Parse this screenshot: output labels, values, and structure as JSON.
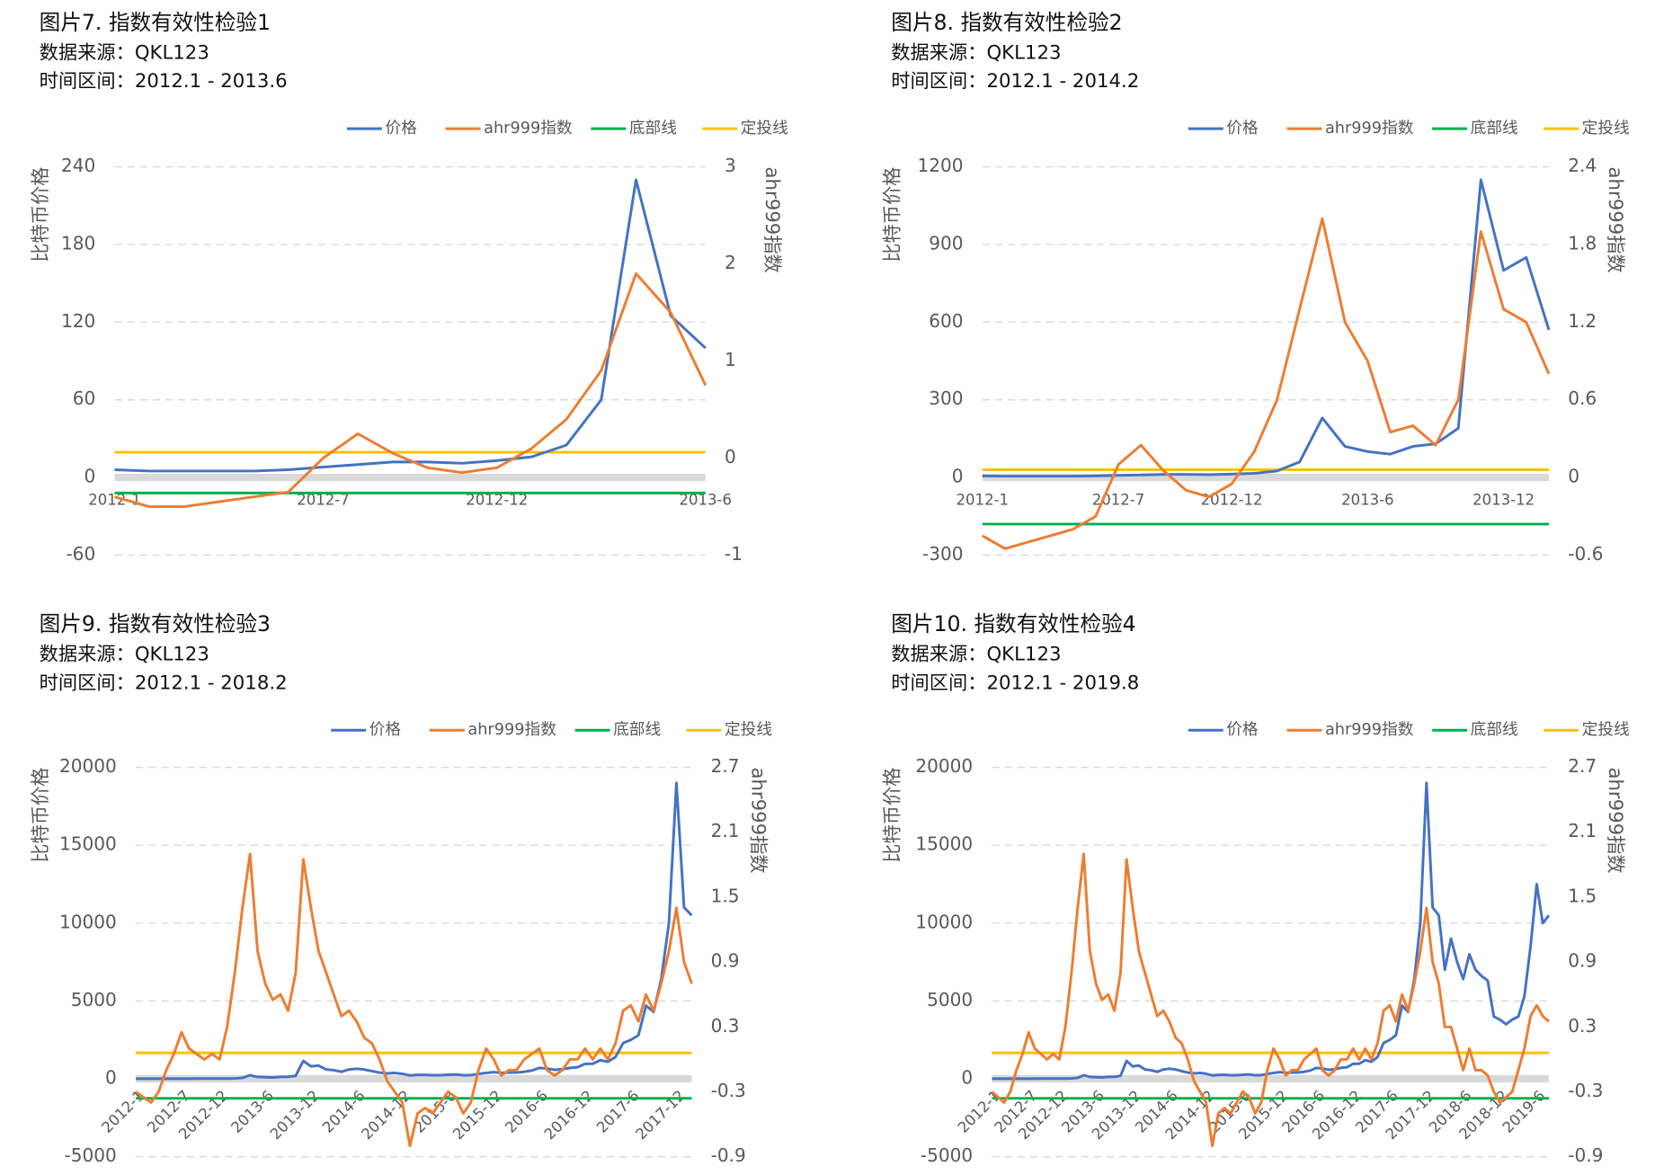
{
  "chart_data": [
    {
      "type": "line",
      "title": "图片7. 指数有效性检验1",
      "source": "数据来源：QKL123",
      "period": "时间区间：2012.1 - 2013.6",
      "y_label": "比特币价格",
      "y2_label": "ahr999指数",
      "categories": [
        "2012-1",
        null,
        null,
        null,
        null,
        null,
        "2012-7",
        null,
        null,
        null,
        null,
        "2012-12",
        null,
        null,
        null,
        null,
        null,
        "2013-6"
      ],
      "ylim": [
        -60,
        240
      ],
      "yticks": [
        -60,
        0,
        60,
        120,
        180,
        240
      ],
      "y2lim": [
        -1,
        3
      ],
      "y2ticks": [
        -1,
        0,
        1,
        2,
        3
      ],
      "grid": true,
      "series": [
        {
          "name": "价格",
          "color": "#4472c4",
          "values": [
            6,
            5,
            5,
            5,
            5,
            6,
            8,
            10,
            12,
            12,
            11,
            13,
            16,
            25,
            60,
            230,
            125,
            100
          ]
        },
        {
          "name": "ahr999指数",
          "color": "#ed7d31",
          "axis": "y2",
          "values": [
            -0.4,
            -0.5,
            -0.5,
            -0.45,
            -0.4,
            -0.35,
            0,
            0.25,
            0.05,
            -0.1,
            -0.15,
            -0.1,
            0.1,
            0.4,
            0.9,
            1.9,
            1.5,
            0.75
          ]
        }
      ],
      "hlines": [
        {
          "name": "底部线",
          "color": "#00b050",
          "axis": "y2",
          "value": -0.36
        },
        {
          "name": "定投线",
          "color": "#ffc000",
          "axis": "y2",
          "value": 0.06
        }
      ]
    },
    {
      "type": "line",
      "title": "图片8. 指数有效性检验2",
      "source": "数据来源：QKL123",
      "period": "时间区间：2012.1 - 2014.2",
      "y_label": "比特币价格",
      "y2_label": "ahr999指数",
      "categories": [
        "2012-1",
        null,
        null,
        null,
        null,
        null,
        "2012-7",
        null,
        null,
        null,
        null,
        "2012-12",
        null,
        null,
        null,
        null,
        null,
        "2013-6",
        null,
        null,
        null,
        null,
        null,
        "2013-12",
        null,
        null
      ],
      "ylim": [
        -300,
        1200
      ],
      "yticks": [
        -300,
        0,
        300,
        600,
        900,
        1200
      ],
      "y2lim": [
        -0.6,
        2.4
      ],
      "y2ticks": [
        -0.6,
        0,
        0.6,
        1.2,
        1.8,
        2.4
      ],
      "grid": true,
      "series": [
        {
          "name": "价格",
          "color": "#4472c4",
          "values": [
            6,
            5,
            5,
            5,
            5,
            6,
            8,
            10,
            12,
            12,
            11,
            13,
            16,
            25,
            60,
            230,
            120,
            100,
            90,
            120,
            130,
            190,
            1150,
            800,
            850,
            570
          ]
        },
        {
          "name": "ahr999指数",
          "color": "#ed7d31",
          "axis": "y2",
          "values": [
            -0.45,
            -0.55,
            -0.5,
            -0.45,
            -0.4,
            -0.3,
            0.1,
            0.25,
            0.05,
            -0.1,
            -0.15,
            -0.05,
            0.2,
            0.6,
            1.3,
            2.0,
            1.2,
            0.9,
            0.35,
            0.4,
            0.25,
            0.6,
            1.9,
            1.3,
            1.2,
            0.8
          ]
        }
      ],
      "hlines": [
        {
          "name": "底部线",
          "color": "#00b050",
          "axis": "y2",
          "value": -0.36
        },
        {
          "name": "定投线",
          "color": "#ffc000",
          "axis": "y2",
          "value": 0.06
        }
      ]
    },
    {
      "type": "line",
      "title": "图片9. 指数有效性检验3",
      "source": "数据来源：QKL123",
      "period": "时间区间：2012.1 - 2018.2",
      "y_label": "比特币价格",
      "y2_label": "ahr999指数",
      "categories": [
        "2012-1",
        null,
        null,
        null,
        null,
        null,
        "2012-7",
        null,
        null,
        null,
        null,
        "2012-12",
        null,
        null,
        null,
        null,
        null,
        "2013-6",
        null,
        null,
        null,
        null,
        null,
        "2013-12",
        null,
        null,
        null,
        null,
        null,
        "2014-6",
        null,
        null,
        null,
        null,
        null,
        "2014-12",
        null,
        null,
        null,
        null,
        null,
        "2015-6",
        null,
        null,
        null,
        null,
        null,
        "2015-12",
        null,
        null,
        null,
        null,
        null,
        "2016-6",
        null,
        null,
        null,
        null,
        null,
        "2016-12",
        null,
        null,
        null,
        null,
        null,
        "2017-6",
        null,
        null,
        null,
        null,
        null,
        "2017-12",
        null,
        null
      ],
      "ylim": [
        -5000,
        20000
      ],
      "yticks": [
        -5000,
        0,
        5000,
        10000,
        15000,
        20000
      ],
      "y2lim": [
        -0.9,
        2.7
      ],
      "y2ticks": [
        -0.9,
        -0.3,
        0.3,
        0.9,
        1.5,
        2.1,
        2.7
      ],
      "grid": true,
      "rotate_labels": true,
      "series": [
        {
          "name": "价格",
          "color": "#4472c4",
          "values": [
            6,
            5,
            5,
            5,
            5,
            6,
            8,
            10,
            12,
            12,
            11,
            13,
            16,
            25,
            60,
            230,
            120,
            100,
            90,
            120,
            130,
            190,
            1150,
            800,
            850,
            600,
            550,
            450,
            600,
            650,
            600,
            500,
            400,
            350,
            380,
            320,
            220,
            250,
            250,
            230,
            230,
            260,
            280,
            230,
            240,
            310,
            380,
            430,
            380,
            400,
            410,
            450,
            530,
            700,
            660,
            580,
            610,
            700,
            740,
            960,
            970,
            1200,
            1100,
            1400,
            2300,
            2500,
            2800,
            4700,
            4300,
            6400,
            10000,
            19000,
            11000,
            10500
          ]
        },
        {
          "name": "ahr999指数",
          "color": "#ed7d31",
          "axis": "y2",
          "values": [
            -0.3,
            -0.35,
            -0.4,
            -0.3,
            -0.1,
            0.05,
            0.25,
            0.1,
            0.05,
            0,
            0.05,
            0,
            0.3,
            0.8,
            1.4,
            1.9,
            1.0,
            0.7,
            0.55,
            0.6,
            0.45,
            0.8,
            1.85,
            1.4,
            1.0,
            0.8,
            0.6,
            0.4,
            0.45,
            0.35,
            0.2,
            0.15,
            0,
            -0.2,
            -0.3,
            -0.4,
            -0.8,
            -0.5,
            -0.45,
            -0.5,
            -0.4,
            -0.3,
            -0.35,
            -0.5,
            -0.4,
            -0.1,
            0.1,
            0,
            -0.15,
            -0.1,
            -0.1,
            0,
            0.05,
            0.1,
            -0.1,
            -0.15,
            -0.1,
            0,
            0,
            0.1,
            0,
            0.1,
            0,
            0.15,
            0.45,
            0.5,
            0.35,
            0.6,
            0.45,
            0.7,
            1.0,
            1.4,
            0.9,
            0.7
          ]
        }
      ],
      "hlines": [
        {
          "name": "底部线",
          "color": "#00b050",
          "axis": "y2",
          "value": -0.36
        },
        {
          "name": "定投线",
          "color": "#ffc000",
          "axis": "y2",
          "value": 0.06
        }
      ]
    },
    {
      "type": "line",
      "title": "图片10. 指数有效性检验4",
      "source": "数据来源：QKL123",
      "period": "时间区间：2012.1 - 2019.8",
      "y_label": "比特币价格",
      "y2_label": "ahr999指数",
      "categories": [
        "2012-1",
        null,
        null,
        null,
        null,
        null,
        "2012-7",
        null,
        null,
        null,
        null,
        "2012-12",
        null,
        null,
        null,
        null,
        null,
        "2013-6",
        null,
        null,
        null,
        null,
        null,
        "2013-12",
        null,
        null,
        null,
        null,
        null,
        "2014-6",
        null,
        null,
        null,
        null,
        null,
        "2014-12",
        null,
        null,
        null,
        null,
        null,
        "2015-6",
        null,
        null,
        null,
        null,
        null,
        "2015-12",
        null,
        null,
        null,
        null,
        null,
        "2016-6",
        null,
        null,
        null,
        null,
        null,
        "2016-12",
        null,
        null,
        null,
        null,
        null,
        "2017-6",
        null,
        null,
        null,
        null,
        null,
        "2017-12",
        null,
        null,
        null,
        null,
        null,
        "2018-6",
        null,
        null,
        null,
        null,
        null,
        "2018-12",
        null,
        null,
        null,
        null,
        null,
        "2019-6",
        null,
        null
      ],
      "ylim": [
        -5000,
        20000
      ],
      "yticks": [
        -5000,
        0,
        5000,
        10000,
        15000,
        20000
      ],
      "y2lim": [
        -0.9,
        2.7
      ],
      "y2ticks": [
        -0.9,
        -0.3,
        0.3,
        0.9,
        1.5,
        2.1,
        2.7
      ],
      "grid": true,
      "rotate_labels": true,
      "series": [
        {
          "name": "价格",
          "color": "#4472c4",
          "values": [
            6,
            5,
            5,
            5,
            5,
            6,
            8,
            10,
            12,
            12,
            11,
            13,
            16,
            25,
            60,
            230,
            120,
            100,
            90,
            120,
            130,
            190,
            1150,
            800,
            850,
            600,
            550,
            450,
            600,
            650,
            600,
            500,
            400,
            350,
            380,
            320,
            220,
            250,
            250,
            230,
            230,
            260,
            280,
            230,
            240,
            310,
            380,
            430,
            380,
            400,
            410,
            450,
            530,
            700,
            660,
            580,
            610,
            700,
            740,
            960,
            970,
            1200,
            1100,
            1400,
            2300,
            2500,
            2800,
            4700,
            4300,
            6400,
            10000,
            19000,
            11000,
            10500,
            7000,
            9000,
            7500,
            6400,
            8000,
            7000,
            6600,
            6300,
            4000,
            3800,
            3500,
            3800,
            4000,
            5300,
            8500,
            12500,
            10000,
            10500
          ]
        },
        {
          "name": "ahr999指数",
          "color": "#ed7d31",
          "axis": "y2",
          "values": [
            -0.3,
            -0.35,
            -0.4,
            -0.3,
            -0.1,
            0.05,
            0.25,
            0.1,
            0.05,
            0,
            0.05,
            0,
            0.3,
            0.8,
            1.4,
            1.9,
            1.0,
            0.7,
            0.55,
            0.6,
            0.45,
            0.8,
            1.85,
            1.4,
            1.0,
            0.8,
            0.6,
            0.4,
            0.45,
            0.35,
            0.2,
            0.15,
            0,
            -0.2,
            -0.3,
            -0.4,
            -0.8,
            -0.5,
            -0.45,
            -0.5,
            -0.4,
            -0.3,
            -0.35,
            -0.5,
            -0.4,
            -0.1,
            0.1,
            0,
            -0.15,
            -0.1,
            -0.1,
            0,
            0.05,
            0.1,
            -0.1,
            -0.15,
            -0.1,
            0,
            0,
            0.1,
            0,
            0.1,
            0,
            0.15,
            0.45,
            0.5,
            0.35,
            0.6,
            0.45,
            0.7,
            1.0,
            1.4,
            0.9,
            0.7,
            0.3,
            0.3,
            0.1,
            -0.1,
            0.1,
            -0.1,
            -0.1,
            -0.15,
            -0.3,
            -0.4,
            -0.35,
            -0.3,
            -0.1,
            0.1,
            0.4,
            0.5,
            0.4,
            0.35
          ]
        }
      ],
      "hlines": [
        {
          "name": "底部线",
          "color": "#00b050",
          "axis": "y2",
          "value": -0.36
        },
        {
          "name": "定投线",
          "color": "#ffc000",
          "axis": "y2",
          "value": 0.06
        }
      ]
    }
  ]
}
